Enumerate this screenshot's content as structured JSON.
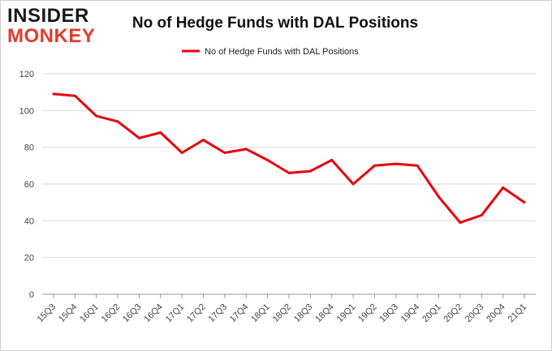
{
  "logo": {
    "line1": "INSIDER",
    "line2": "MONKEY",
    "color_line1": "#1a1a1a",
    "color_line2": "#e03c2c"
  },
  "chart_data": {
    "type": "line",
    "title": "No of Hedge Funds with DAL Positions",
    "xlabel": "",
    "ylabel": "",
    "categories": [
      "15Q3",
      "15Q4",
      "16Q1",
      "16Q2",
      "16Q3",
      "16Q4",
      "17Q1",
      "17Q2",
      "17Q3",
      "17Q4",
      "18Q1",
      "18Q2",
      "18Q3",
      "18Q4",
      "19Q1",
      "19Q2",
      "19Q3",
      "19Q4",
      "20Q1",
      "20Q2",
      "20Q3",
      "20Q4",
      "21Q1"
    ],
    "series": [
      {
        "name": "No of Hedge Funds with DAL Positions",
        "color": "#e8000b",
        "values": [
          109,
          108,
          97,
          94,
          85,
          88,
          77,
          84,
          77,
          79,
          73,
          66,
          67,
          73,
          60,
          70,
          71,
          70,
          53,
          39,
          43,
          58,
          50
        ]
      }
    ],
    "ylim": [
      0,
      120
    ],
    "yticks": [
      "0",
      "20",
      "40",
      "60",
      "80",
      "100",
      "120"
    ],
    "grid": true,
    "legend_position": "top-center"
  }
}
